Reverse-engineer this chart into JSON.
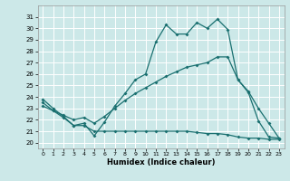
{
  "title": "",
  "xlabel": "Humidex (Indice chaleur)",
  "bg_color": "#cce8e8",
  "grid_color": "#ffffff",
  "line_color": "#1a7070",
  "x_ticks": [
    0,
    1,
    2,
    3,
    4,
    5,
    6,
    7,
    8,
    9,
    10,
    11,
    12,
    13,
    14,
    15,
    16,
    17,
    18,
    19,
    20,
    21,
    22,
    23
  ],
  "ylim": [
    19.5,
    32.0
  ],
  "xlim": [
    -0.5,
    23.5
  ],
  "yticks": [
    20,
    21,
    22,
    23,
    24,
    25,
    26,
    27,
    28,
    29,
    30,
    31
  ],
  "line1_x": [
    0,
    1,
    2,
    3,
    4,
    5,
    6,
    7,
    8,
    9,
    10,
    11,
    12,
    13,
    14,
    15,
    16,
    17,
    18,
    19,
    20,
    21,
    22,
    23
  ],
  "line1_y": [
    23.8,
    23.0,
    22.3,
    21.5,
    21.7,
    20.6,
    21.8,
    23.2,
    24.3,
    25.5,
    26.0,
    28.8,
    30.3,
    29.5,
    29.5,
    30.5,
    30.0,
    30.8,
    29.9,
    25.5,
    24.4,
    21.9,
    20.5,
    20.4
  ],
  "line2_x": [
    0,
    1,
    2,
    3,
    4,
    5,
    6,
    7,
    8,
    9,
    10,
    11,
    12,
    13,
    14,
    15,
    16,
    17,
    18,
    19,
    20,
    21,
    22,
    23
  ],
  "line2_y": [
    23.2,
    22.8,
    22.4,
    22.0,
    22.2,
    21.7,
    22.3,
    23.0,
    23.7,
    24.3,
    24.8,
    25.3,
    25.8,
    26.2,
    26.6,
    26.8,
    27.0,
    27.5,
    27.5,
    25.5,
    24.5,
    23.0,
    21.7,
    20.4
  ],
  "line3_x": [
    0,
    1,
    2,
    3,
    4,
    5,
    6,
    7,
    8,
    9,
    10,
    11,
    12,
    13,
    14,
    15,
    16,
    17,
    18,
    19,
    20,
    21,
    22,
    23
  ],
  "line3_y": [
    23.5,
    22.8,
    22.2,
    21.5,
    21.5,
    21.0,
    21.0,
    21.0,
    21.0,
    21.0,
    21.0,
    21.0,
    21.0,
    21.0,
    21.0,
    20.9,
    20.8,
    20.8,
    20.7,
    20.5,
    20.4,
    20.4,
    20.3,
    20.3
  ]
}
